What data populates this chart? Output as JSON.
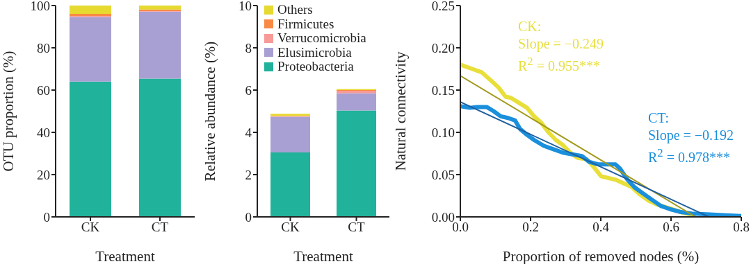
{
  "chart_data": [
    {
      "type": "bar",
      "ylabel": "OTU proportion (%)",
      "xlabel": "Treatment",
      "categories": [
        "CK",
        "CT"
      ],
      "stacked": true,
      "ylim": [
        0,
        100
      ],
      "yticks": [
        0,
        20,
        40,
        60,
        80,
        100
      ],
      "series": [
        {
          "color": "#20b29a",
          "values": [
            64,
            65.4
          ]
        },
        {
          "color": "#a8a0d2",
          "values": [
            30.6,
            31.7
          ]
        },
        {
          "color": "#f79a98",
          "values": [
            0.5,
            0.3
          ]
        },
        {
          "color": "#f98a44",
          "values": [
            1.0,
            0.7
          ]
        },
        {
          "color": "#e6d930",
          "values": [
            3.9,
            1.9
          ]
        }
      ]
    },
    {
      "type": "bar",
      "ylabel": "Relative abundance (%)",
      "xlabel": "Treatment",
      "categories": [
        "CK",
        "CT"
      ],
      "stacked": true,
      "ylim": [
        0,
        10
      ],
      "yticks": [
        0,
        2,
        4,
        6,
        8,
        10
      ],
      "legend": "top left",
      "series": [
        {
          "name": "Proteobacteria",
          "color": "#20b29a",
          "values": [
            3.05,
            5.03
          ]
        },
        {
          "name": "Elusimicrobia",
          "color": "#a8a0d2",
          "values": [
            1.69,
            0.82
          ]
        },
        {
          "name": "Verrucomicrobia",
          "color": "#f79a98",
          "values": [
            0.02,
            0.12
          ]
        },
        {
          "name": "Firmicutes",
          "color": "#f98a44",
          "values": [
            0.02,
            0.03
          ]
        },
        {
          "name": "Others",
          "color": "#e6d930",
          "values": [
            0.1,
            0.05
          ]
        }
      ]
    },
    {
      "type": "line",
      "xlabel": "Proportion of removed nodes (%)",
      "ylabel": "Natural connectivity",
      "xlim": [
        0,
        0.8
      ],
      "ylim": [
        0,
        0.25
      ],
      "marker": "none",
      "line_style": "solid",
      "xticks": [
        {
          "value": 0,
          "label": "0.0"
        },
        0.2,
        0.4,
        0.6,
        0.8
      ],
      "yticks": [
        {
          "value": 0,
          "label": "0.00"
        },
        0.05,
        {
          "value": 0.1,
          "label": "0.10"
        },
        0.15,
        {
          "value": 0.2,
          "label": "0.20"
        },
        0.25
      ],
      "annotations": [
        "Slope = −0.249",
        "R$^{2}$ = 0.955***",
        "Slope = −0.192",
        "R$^{2}$ = 0.978***"
      ],
      "series": [
        {
          "name": "CK:",
          "color": "#e8df3a",
          "x": [
            0,
            0.034,
            0.061,
            0.088,
            0.109,
            0.129,
            0.143,
            0.163,
            0.19,
            0.21,
            0.231,
            0.251,
            0.272,
            0.292,
            0.313,
            0.333,
            0.36,
            0.38,
            0.401,
            0.421,
            0.442,
            0.469,
            0.489,
            0.51,
            0.537,
            0.564,
            0.598,
            0.632,
            0.666
          ],
          "values": [
            0.18,
            0.175,
            0.171,
            0.161,
            0.153,
            0.142,
            0.141,
            0.136,
            0.129,
            0.119,
            0.111,
            0.1,
            0.091,
            0.085,
            0.076,
            0.07,
            0.068,
            0.059,
            0.048,
            0.046,
            0.044,
            0.039,
            0.035,
            0.027,
            0.019,
            0.014,
            0.01,
            0.005,
            0.002
          ]
        },
        {
          "name": "CT:",
          "color": "#1a8fdc",
          "x": [
            0,
            0.027,
            0.048,
            0.075,
            0.095,
            0.115,
            0.136,
            0.156,
            0.17,
            0.19,
            0.21,
            0.238,
            0.265,
            0.292,
            0.319,
            0.346,
            0.367,
            0.394,
            0.421,
            0.442,
            0.455,
            0.476,
            0.496,
            0.516,
            0.543,
            0.571,
            0.598,
            0.625,
            0.659,
            0.7,
            0.747,
            0.8
          ],
          "values": [
            0.131,
            0.129,
            0.13,
            0.13,
            0.125,
            0.119,
            0.117,
            0.114,
            0.104,
            0.097,
            0.091,
            0.084,
            0.08,
            0.076,
            0.074,
            0.072,
            0.065,
            0.062,
            0.062,
            0.062,
            0.057,
            0.044,
            0.035,
            0.029,
            0.021,
            0.013,
            0.009,
            0.006,
            0.004,
            0.003,
            0.002,
            0.001
          ]
        },
        {
          "type": "line",
          "color": "#a29a1c",
          "x": [
            0,
            0.67
          ],
          "values": [
            0.167,
            0
          ]
        },
        {
          "type": "line",
          "color": "#1f5f9f",
          "x": [
            0,
            0.708
          ],
          "values": [
            0.136,
            0
          ]
        }
      ]
    }
  ]
}
